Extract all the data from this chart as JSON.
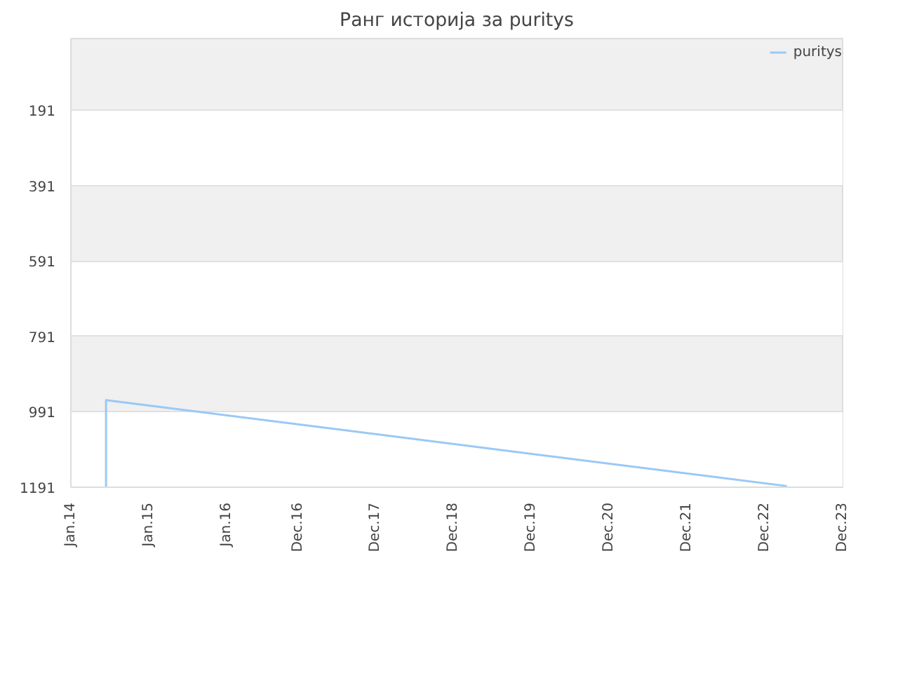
{
  "chart_data": {
    "type": "line",
    "title": "Ранг историја за puritys",
    "series": [
      {
        "name": "puritys",
        "color": "#99c9f5",
        "x": [
          "2014-06-15",
          "2014-06-15",
          "2023-03-15"
        ],
        "values": [
          1191,
          960,
          1188
        ]
      }
    ],
    "xlim": [
      "2014-01",
      "2023-12"
    ],
    "xticks": [
      {
        "value": "2014-01",
        "label": "Jan.14"
      },
      {
        "value": "2015-01",
        "label": "Jan.15"
      },
      {
        "value": "2016-01",
        "label": "Jan.16"
      },
      {
        "value": "2016-12",
        "label": "Dec.16"
      },
      {
        "value": "2017-12",
        "label": "Dec.17"
      },
      {
        "value": "2018-12",
        "label": "Dec.18"
      },
      {
        "value": "2019-12",
        "label": "Dec.19"
      },
      {
        "value": "2020-12",
        "label": "Dec.20"
      },
      {
        "value": "2021-12",
        "label": "Dec.21"
      },
      {
        "value": "2022-12",
        "label": "Dec.22"
      },
      {
        "value": "2023-12",
        "label": "Dec.23"
      }
    ],
    "ylim": [
      1191,
      1
    ],
    "yticks": [
      191,
      391,
      591,
      791,
      991,
      1191
    ],
    "grid": "y",
    "legend": "top right",
    "marker": "none",
    "line_style": "solid"
  }
}
